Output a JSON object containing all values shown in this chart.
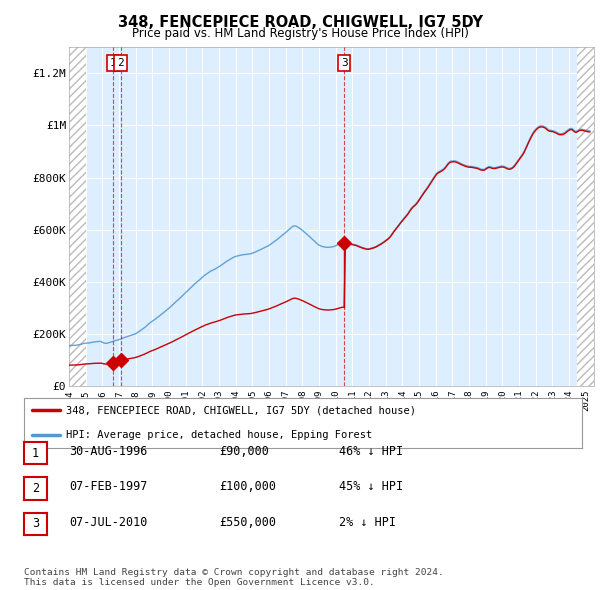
{
  "title": "348, FENCEPIECE ROAD, CHIGWELL, IG7 5DY",
  "subtitle": "Price paid vs. HM Land Registry's House Price Index (HPI)",
  "ylim": [
    0,
    1300000
  ],
  "yticks": [
    0,
    200000,
    400000,
    600000,
    800000,
    1000000,
    1200000
  ],
  "ytick_labels": [
    "£0",
    "£200K",
    "£400K",
    "£600K",
    "£800K",
    "£1M",
    "£1.2M"
  ],
  "sale_year_nums": [
    1996.664,
    1997.097,
    2010.511
  ],
  "sale_prices": [
    90000,
    100000,
    550000
  ],
  "sale_labels": [
    "1",
    "2",
    "3"
  ],
  "legend_red": "348, FENCEPIECE ROAD, CHIGWELL, IG7 5DY (detached house)",
  "legend_blue": "HPI: Average price, detached house, Epping Forest",
  "table_rows": [
    [
      "1",
      "30-AUG-1996",
      "£90,000",
      "46% ↓ HPI"
    ],
    [
      "2",
      "07-FEB-1997",
      "£100,000",
      "45% ↓ HPI"
    ],
    [
      "3",
      "07-JUL-2010",
      "£550,000",
      "2% ↓ HPI"
    ]
  ],
  "footer": "Contains HM Land Registry data © Crown copyright and database right 2024.\nThis data is licensed under the Open Government Licence v3.0.",
  "red_color": "#cc0000",
  "blue_color": "#5599cc",
  "plot_bg_color": "#ddeeff",
  "grid_color": "#ffffff",
  "xmin": 1994.0,
  "xmax": 2025.5
}
